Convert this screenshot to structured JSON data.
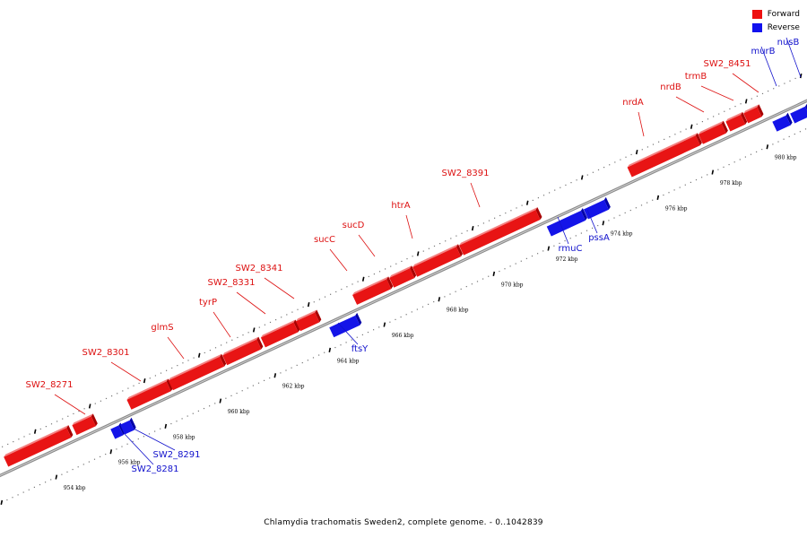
{
  "caption": "Chlamydia trachomatis Sweden2, complete genome. - 0..1042839",
  "legend": [
    {
      "label": "Forward",
      "color": "#ee1111"
    },
    {
      "label": "Reverse",
      "color": "#1111ee"
    }
  ],
  "kbp_labels": [
    {
      "value": 954,
      "text": "954 kbp"
    },
    {
      "value": 956,
      "text": "956 kbp"
    },
    {
      "value": 958,
      "text": "958 kbp"
    },
    {
      "value": 960,
      "text": "960 kbp"
    },
    {
      "value": 962,
      "text": "962 kbp"
    },
    {
      "value": 964,
      "text": "964 kbp"
    },
    {
      "value": 966,
      "text": "966 kbp"
    },
    {
      "value": 968,
      "text": "968 kbp"
    },
    {
      "value": 970,
      "text": "970 kbp"
    },
    {
      "value": 972,
      "text": "972 kbp"
    },
    {
      "value": 974,
      "text": "974 kbp"
    },
    {
      "value": 976,
      "text": "976 kbp"
    },
    {
      "value": 978,
      "text": "978 kbp"
    },
    {
      "value": 980,
      "text": "980 kbp"
    }
  ],
  "genes": [
    {
      "name": "",
      "strand": "forward",
      "start": 952.7,
      "end": 955.0
    },
    {
      "name": "SW2_8271",
      "strand": "forward",
      "start": 955.2,
      "end": 955.9
    },
    {
      "name": "SW2_8281",
      "strand": "reverse",
      "start": 956.3,
      "end": 956.6
    },
    {
      "name": "SW2_8291",
      "strand": "reverse",
      "start": 956.65,
      "end": 957.0
    },
    {
      "name": "SW2_8301",
      "strand": "forward",
      "start": 957.2,
      "end": 958.65
    },
    {
      "name": "glmS",
      "strand": "forward",
      "start": 958.72,
      "end": 960.6
    },
    {
      "name": "tyrP",
      "strand": "forward",
      "start": 960.7,
      "end": 961.95
    },
    {
      "name": "SW2_8331",
      "strand": "forward",
      "start": 962.1,
      "end": 963.3
    },
    {
      "name": "SW2_8341",
      "strand": "forward",
      "start": 963.38,
      "end": 964.08
    },
    {
      "name": "ftsY",
      "strand": "reverse",
      "start": 964.3,
      "end": 965.25
    },
    {
      "name": "sucC",
      "strand": "forward",
      "start": 965.45,
      "end": 966.7
    },
    {
      "name": "sucD",
      "strand": "forward",
      "start": 966.8,
      "end": 967.55
    },
    {
      "name": "htrA",
      "strand": "forward",
      "start": 967.65,
      "end": 969.25
    },
    {
      "name": "SW2_8391",
      "strand": "forward",
      "start": 969.35,
      "end": 972.15
    },
    {
      "name": "rmuC",
      "strand": "reverse",
      "start": 972.25,
      "end": 973.5
    },
    {
      "name": "pssA",
      "strand": "reverse",
      "start": 973.6,
      "end": 974.35
    },
    {
      "name": "nrdA",
      "strand": "forward",
      "start": 975.5,
      "end": 978.0
    },
    {
      "name": "nrdB",
      "strand": "forward",
      "start": 978.1,
      "end": 978.95
    },
    {
      "name": "trmB",
      "strand": "forward",
      "start": 979.1,
      "end": 979.65
    },
    {
      "name": "SW2_8451",
      "strand": "forward",
      "start": 979.75,
      "end": 980.25
    },
    {
      "name": "murB",
      "strand": "reverse",
      "start": 980.5,
      "end": 981.0
    },
    {
      "name": "nusB",
      "strand": "reverse",
      "start": 981.15,
      "end": 981.7
    }
  ]
}
